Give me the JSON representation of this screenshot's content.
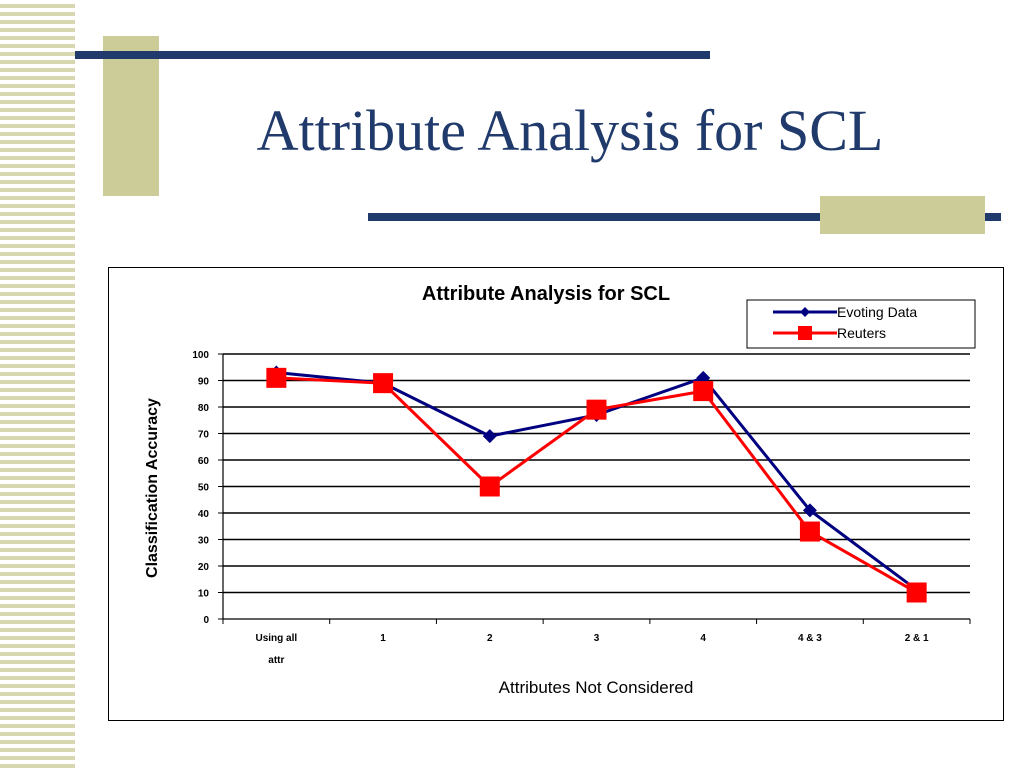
{
  "slide": {
    "title": "Attribute Analysis for SCL"
  },
  "colors": {
    "title_navy": "#1f3a6b",
    "accent_tan": "#cccc99",
    "series_evoting": "#000080",
    "series_reuters": "#ff0000"
  },
  "chart_data": {
    "type": "line",
    "title": "Attribute Analysis for SCL",
    "xlabel": "Attributes Not Considered",
    "ylabel": "Classification Accuracy",
    "categories": [
      "Using all attr",
      "1",
      "2",
      "3",
      "4",
      "4 & 3",
      "2 & 1"
    ],
    "ylim": [
      0,
      100
    ],
    "yticks": [
      0,
      10,
      20,
      30,
      40,
      50,
      60,
      70,
      80,
      90,
      100
    ],
    "grid": true,
    "legend_position": "top-right",
    "series": [
      {
        "name": "Evoting Data",
        "color": "#000080",
        "marker": "diamond",
        "values": [
          93,
          89,
          69,
          77,
          91,
          41,
          11
        ]
      },
      {
        "name": "Reuters",
        "color": "#ff0000",
        "marker": "square",
        "values": [
          91,
          89,
          50,
          79,
          86,
          33,
          10
        ]
      }
    ]
  }
}
